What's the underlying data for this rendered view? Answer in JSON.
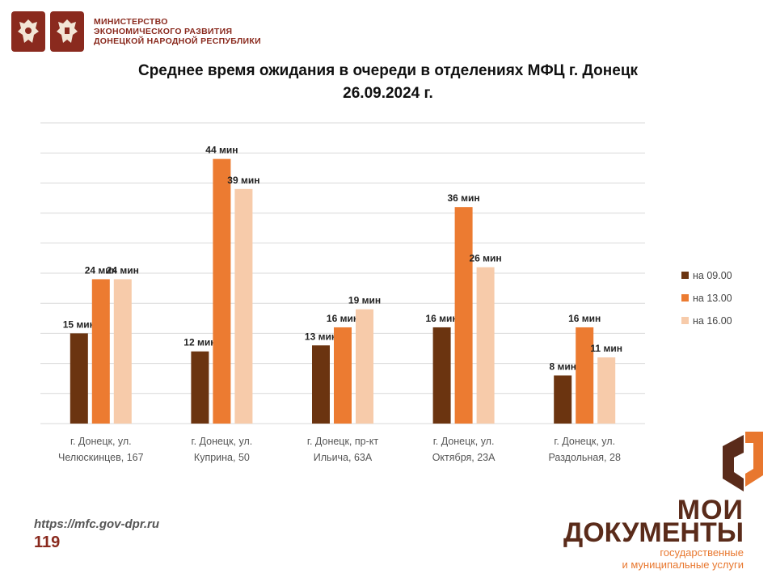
{
  "header": {
    "ministry_lines": [
      "МИНИСТЕРСТВО",
      "ЭКОНОМИЧЕСКОГО РАЗВИТИЯ",
      "ДОНЕЦКОЙ НАРОДНОЙ РЕСПУБЛИКИ"
    ]
  },
  "footer": {
    "url": "https://mfc.gov-dpr.ru",
    "page_number": "119"
  },
  "brand": {
    "line1": "МОИ",
    "line2": "ДОКУМЕНТЫ",
    "sub1": "государственные",
    "sub2": "и муниципальные услуги"
  },
  "colors": {
    "brand": "#8a2a1e",
    "grid": "#d9d9d9"
  },
  "chart_data": {
    "type": "bar",
    "title": "Среднее время ожидания в очереди в отделениях МФЦ г. Донецк",
    "subtitle": "26.09.2024 г.",
    "categories": [
      [
        "г. Донецк, ул.",
        "Челюскинцев, 167"
      ],
      [
        "г. Донецк, ул.",
        "Куприна, 50"
      ],
      [
        "г. Донецк, пр-кт",
        "Ильича, 63А"
      ],
      [
        "г. Донецк, ул.",
        "Октября, 23А"
      ],
      [
        "г. Донецк, ул.",
        "Раздольная, 28"
      ]
    ],
    "series": [
      {
        "name": "на 09.00",
        "color": "#6b3410",
        "values": [
          15,
          12,
          13,
          16,
          8
        ]
      },
      {
        "name": "на 13.00",
        "color": "#ec7b31",
        "values": [
          24,
          44,
          16,
          36,
          16
        ]
      },
      {
        "name": "на 16.00",
        "color": "#f7cbaa",
        "values": [
          24,
          39,
          19,
          26,
          11
        ]
      }
    ],
    "value_suffix": " мин",
    "ylim": [
      0,
      50
    ],
    "y_axis_labels_shown": false,
    "grid": true,
    "legend_position": "right"
  }
}
